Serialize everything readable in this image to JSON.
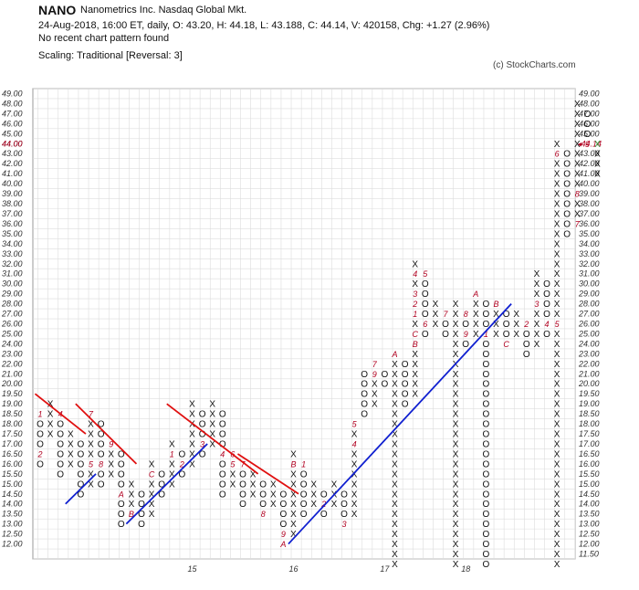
{
  "header": {
    "ticker": "NANO",
    "company": "Nanometrics Inc.  Nasdaq Global Mkt.",
    "quote_line": "24-Aug-2018, 16:00 ET, daily, O: 43.20, H: 44.18, L: 43.188, C: 44.14, V: 420158, Chg: +1.27 (2.96%)",
    "pattern_line": "No recent chart pattern found",
    "scaling_line": "Scaling: Traditional [Reversal: 3]",
    "copyright": "(c) StockCharts.com"
  },
  "chart_data": {
    "type": "point-and-figure",
    "price_levels": [
      "11.50",
      "12.00",
      "12.50",
      "13.00",
      "13.50",
      "14.00",
      "14.50",
      "15.00",
      "15.50",
      "16.00",
      "16.50",
      "17.00",
      "17.50",
      "18.00",
      "18.50",
      "19.00",
      "19.50",
      "20.00",
      "21.00",
      "22.00",
      "23.00",
      "24.00",
      "25.00",
      "26.00",
      "27.00",
      "28.00",
      "29.00",
      "30.00",
      "31.00",
      "32.00",
      "33.00",
      "34.00",
      "35.00",
      "36.00",
      "37.00",
      "38.00",
      "39.00",
      "40.00",
      "41.00",
      "42.00",
      "43.00",
      "44.00",
      "45.00",
      "46.00",
      "47.00",
      "48.00",
      "49.00"
    ],
    "left_labels": [
      "12.00",
      "12.50",
      "13.00",
      "13.50",
      "14.00",
      "14.50",
      "15.00",
      "15.50",
      "16.00",
      "16.50",
      "17.00",
      "17.50",
      "18.00",
      "18.50",
      "19.00",
      "19.50",
      "20.00",
      "21.00",
      "22.00",
      "23.00",
      "24.00",
      "25.00",
      "26.00",
      "27.00",
      "28.00",
      "29.00",
      "30.00",
      "31.00",
      "32.00",
      "33.00",
      "34.00",
      "35.00",
      "36.00",
      "37.00",
      "38.00",
      "39.00",
      "40.00",
      "41.00",
      "42.00",
      "43.00",
      "44.00",
      "45.00",
      "46.00",
      "47.00",
      "48.00",
      "49.00"
    ],
    "right_labels": [
      "11.50",
      "12.00",
      "12.50",
      "13.00",
      "13.50",
      "14.00",
      "14.50",
      "15.00",
      "15.50",
      "16.00",
      "16.50",
      "17.00",
      "17.50",
      "18.00",
      "18.50",
      "19.00",
      "19.50",
      "20.00",
      "21.00",
      "22.00",
      "23.00",
      "24.00",
      "25.00",
      "26.00",
      "27.00",
      "28.00",
      "29.00",
      "30.00",
      "31.00",
      "32.00",
      "33.00",
      "34.00",
      "35.00",
      "36.00",
      "37.00",
      "38.00",
      "39.00",
      "40.00",
      "41.00",
      "42.00",
      "43.00",
      "45.00",
      "46.00",
      "47.00",
      "48.00",
      "49.00"
    ],
    "current_price": "44.00",
    "current_price_marker": "44.14",
    "x_year_labels": [
      {
        "label": "15",
        "column": 15
      },
      {
        "label": "16",
        "column": 25
      },
      {
        "label": "17",
        "column": 34
      },
      {
        "label": "18",
        "column": 42
      }
    ],
    "columns": [
      {
        "type": "O",
        "from": "16.00",
        "to": "18.50",
        "marks": [
          {
            "level": "18.50",
            "m": "1"
          },
          {
            "level": "16.50",
            "m": "2"
          }
        ]
      },
      {
        "type": "X",
        "from": "17.50",
        "to": "19.00",
        "marks": []
      },
      {
        "type": "O",
        "from": "15.50",
        "to": "18.50",
        "marks": [
          {
            "level": "18.50",
            "m": "4"
          }
        ]
      },
      {
        "type": "X",
        "from": "16.00",
        "to": "17.50",
        "marks": []
      },
      {
        "type": "O",
        "from": "14.50",
        "to": "17.00",
        "marks": []
      },
      {
        "type": "X",
        "from": "15.00",
        "to": "18.50",
        "marks": [
          {
            "level": "18.50",
            "m": "7"
          },
          {
            "level": "16.00",
            "m": "5"
          }
        ]
      },
      {
        "type": "O",
        "from": "15.00",
        "to": "18.00",
        "marks": [
          {
            "level": "16.00",
            "m": "8"
          }
        ]
      },
      {
        "type": "X",
        "from": "15.50",
        "to": "17.00",
        "marks": [
          {
            "level": "17.00",
            "m": "9"
          }
        ]
      },
      {
        "type": "O",
        "from": "13.00",
        "to": "16.50",
        "marks": [
          {
            "level": "14.50",
            "m": "A"
          }
        ]
      },
      {
        "type": "X",
        "from": "13.50",
        "to": "15.00",
        "marks": [
          {
            "level": "13.50",
            "m": "B"
          }
        ]
      },
      {
        "type": "O",
        "from": "13.00",
        "to": "14.50",
        "marks": []
      },
      {
        "type": "X",
        "from": "13.50",
        "to": "16.00",
        "marks": [
          {
            "level": "15.50",
            "m": "C"
          }
        ]
      },
      {
        "type": "O",
        "from": "14.50",
        "to": "15.50",
        "marks": []
      },
      {
        "type": "X",
        "from": "15.00",
        "to": "17.00",
        "marks": [
          {
            "level": "16.50",
            "m": "1"
          }
        ]
      },
      {
        "type": "O",
        "from": "15.50",
        "to": "16.50",
        "marks": [
          {
            "level": "16.00",
            "m": "2"
          }
        ]
      },
      {
        "type": "X",
        "from": "16.00",
        "to": "19.00",
        "marks": []
      },
      {
        "type": "O",
        "from": "16.50",
        "to": "18.50",
        "marks": [
          {
            "level": "17.00",
            "m": "3"
          }
        ]
      },
      {
        "type": "X",
        "from": "17.00",
        "to": "19.00",
        "marks": []
      },
      {
        "type": "O",
        "from": "14.50",
        "to": "18.50",
        "marks": [
          {
            "level": "16.50",
            "m": "4"
          }
        ]
      },
      {
        "type": "X",
        "from": "15.00",
        "to": "16.50",
        "marks": [
          {
            "level": "16.50",
            "m": "6"
          },
          {
            "level": "16.00",
            "m": "5"
          }
        ]
      },
      {
        "type": "O",
        "from": "14.00",
        "to": "16.00",
        "marks": [
          {
            "level": "16.00",
            "m": "7"
          }
        ]
      },
      {
        "type": "X",
        "from": "14.50",
        "to": "15.50",
        "marks": []
      },
      {
        "type": "O",
        "from": "13.50",
        "to": "15.00",
        "marks": [
          {
            "level": "13.50",
            "m": "8"
          }
        ]
      },
      {
        "type": "X",
        "from": "14.00",
        "to": "15.00",
        "marks": []
      },
      {
        "type": "O",
        "from": "12.00",
        "to": "14.50",
        "marks": [
          {
            "level": "12.50",
            "m": "9"
          },
          {
            "level": "12.00",
            "m": "A"
          }
        ]
      },
      {
        "type": "X",
        "from": "12.50",
        "to": "16.50",
        "marks": [
          {
            "level": "16.00",
            "m": "B"
          }
        ]
      },
      {
        "type": "O",
        "from": "13.50",
        "to": "16.00",
        "marks": [
          {
            "level": "16.00",
            "m": "1"
          }
        ]
      },
      {
        "type": "X",
        "from": "14.00",
        "to": "15.00",
        "marks": []
      },
      {
        "type": "O",
        "from": "13.50",
        "to": "14.50",
        "marks": [
          {
            "level": "14.00",
            "m": "2"
          }
        ]
      },
      {
        "type": "X",
        "from": "14.00",
        "to": "15.00",
        "marks": []
      },
      {
        "type": "O",
        "from": "13.00",
        "to": "14.50",
        "marks": [
          {
            "level": "13.00",
            "m": "3"
          }
        ]
      },
      {
        "type": "X",
        "from": "13.50",
        "to": "18.00",
        "marks": [
          {
            "level": "17.00",
            "m": "4"
          },
          {
            "level": "18.00",
            "m": "5"
          },
          {
            "level": "19.50",
            "m": "6"
          }
        ]
      },
      {
        "type": "O",
        "from": "18.50",
        "to": "21.00",
        "marks": []
      },
      {
        "type": "X",
        "from": "19.00",
        "to": "22.00",
        "marks": [
          {
            "level": "22.00",
            "m": "7"
          },
          {
            "level": "21.00",
            "m": "9"
          }
        ]
      },
      {
        "type": "O",
        "from": "20.00",
        "to": "21.00",
        "marks": []
      },
      {
        "type": "X",
        "from": "20.50",
        "to": "23.00",
        "marks": [
          {
            "level": "23.00",
            "m": "A"
          }
        ]
      },
      {
        "type": "O",
        "from": "19.00",
        "to": "22.00",
        "marks": []
      },
      {
        "type": "X",
        "from": "19.50",
        "to": "32.00",
        "marks": [
          {
            "level": "24.00",
            "m": "B"
          },
          {
            "level": "25.00",
            "m": "C"
          },
          {
            "level": "27.00",
            "m": "1"
          },
          {
            "level": "28.00",
            "m": "2"
          },
          {
            "level": "29.00",
            "m": "3"
          },
          {
            "level": "31.00",
            "m": "4"
          }
        ]
      },
      {
        "type": "O",
        "from": "25.00",
        "to": "31.00",
        "marks": [
          {
            "level": "26.00",
            "m": "6"
          },
          {
            "level": "31.00",
            "m": "5"
          }
        ]
      },
      {
        "type": "X",
        "from": "26.00",
        "to": "28.00",
        "marks": []
      },
      {
        "type": "O",
        "from": "25.00",
        "to": "27.00",
        "marks": [
          {
            "level": "27.00",
            "m": "7"
          }
        ]
      },
      {
        "type": "X",
        "from": "25.50",
        "to": "28.00",
        "marks": []
      },
      {
        "type": "O",
        "from": "24.00",
        "to": "27.00",
        "marks": [
          {
            "level": "27.00",
            "m": "8"
          },
          {
            "level": "25.00",
            "m": "9"
          }
        ]
      },
      {
        "type": "X",
        "from": "25.00",
        "to": "29.00",
        "marks": [
          {
            "level": "29.00",
            "m": "A"
          }
        ]
      },
      {
        "type": "O",
        "from": "24.50",
        "to": "28.00",
        "marks": [
          {
            "level": "25.00",
            "m": "1"
          }
        ]
      },
      {
        "type": "X",
        "from": "25.00",
        "to": "28.00",
        "marks": [
          {
            "level": "28.00",
            "m": "B"
          }
        ]
      },
      {
        "type": "O",
        "from": "24.00",
        "to": "27.00",
        "marks": [
          {
            "level": "24.00",
            "m": "C"
          }
        ]
      },
      {
        "type": "X",
        "from": "25.00",
        "to": "27.00",
        "marks": []
      },
      {
        "type": "O",
        "from": "23.00",
        "to": "26.00",
        "marks": [
          {
            "level": "26.00",
            "m": "2"
          }
        ]
      },
      {
        "type": "X",
        "from": "24.00",
        "to": "31.00",
        "marks": [
          {
            "level": "28.00",
            "m": "3"
          }
        ]
      },
      {
        "type": "O",
        "from": "25.00",
        "to": "30.00",
        "marks": [
          {
            "level": "26.00",
            "m": "4"
          }
        ]
      },
      {
        "type": "X",
        "from": "25.50",
        "to": "44.00",
        "marks": [
          {
            "level": "26.00",
            "m": "5"
          },
          {
            "level": "43.00",
            "m": "6"
          }
        ]
      },
      {
        "type": "O",
        "from": "35.00",
        "to": "43.00",
        "marks": []
      },
      {
        "type": "X",
        "from": "36.00",
        "to": "48.00",
        "marks": [
          {
            "level": "36.00",
            "m": "7"
          },
          {
            "level": "39.00",
            "m": "8"
          }
        ]
      },
      {
        "type": "O",
        "from": "44.00",
        "to": "47.00",
        "marks": [
          {
            "level": "44.00",
            "m": "9"
          }
        ]
      },
      {
        "type": "X",
        "from": "41.00",
        "to": "44.00",
        "marks": []
      }
    ],
    "red_trendlines": [
      {
        "from": {
          "column": 0,
          "level": "19.50"
        },
        "to": {
          "column": 4,
          "level": "17.50"
        }
      },
      {
        "from": {
          "column": 4,
          "level": "19.00"
        },
        "to": {
          "column": 9,
          "level": "16.00"
        }
      },
      {
        "from": {
          "column": 13,
          "level": "19.00"
        },
        "to": {
          "column": 21,
          "level": "15.50"
        }
      },
      {
        "from": {
          "column": 20,
          "level": "16.50"
        },
        "to": {
          "column": 25,
          "level": "14.50"
        }
      }
    ],
    "blue_trendlines": [
      {
        "from": {
          "column": 3,
          "level": "14.00"
        },
        "to": {
          "column": 5,
          "level": "15.50"
        }
      },
      {
        "from": {
          "column": 9,
          "level": "13.00"
        },
        "to": {
          "column": 16,
          "level": "17.00"
        }
      },
      {
        "from": {
          "column": 25,
          "level": "12.00"
        },
        "to": {
          "column": 46,
          "level": "28.00"
        }
      }
    ],
    "colors": {
      "x": "#111111",
      "o": "#111111",
      "month_marks": "#b00020",
      "last_x": "#2a9d3a",
      "red_trendline": "#e01010",
      "blue_trendline": "#1020d0",
      "grid": "#dddddd",
      "current_price": "#b00020"
    }
  }
}
